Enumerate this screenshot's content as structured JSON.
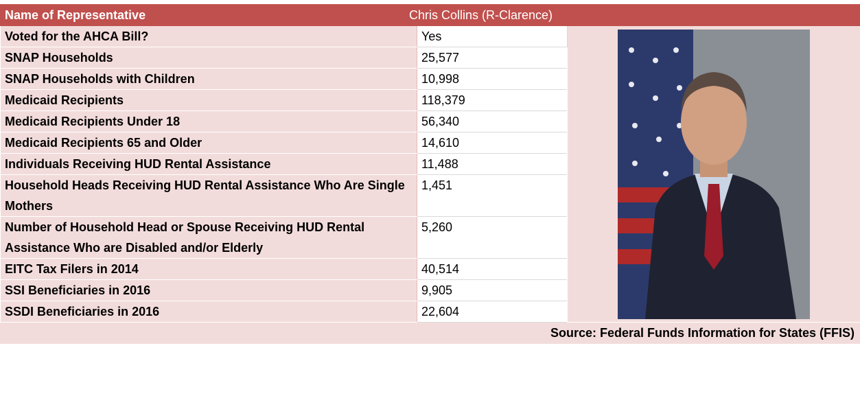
{
  "header": {
    "label": "Name of Representative",
    "name": "Chris Collins (R-Clarence)"
  },
  "rows": [
    {
      "label": "Voted for the AHCA Bill?",
      "value": "Yes"
    },
    {
      "label": "SNAP Households",
      "value": "25,577"
    },
    {
      "label": "SNAP Households with Children",
      "value": "10,998"
    },
    {
      "label": "Medicaid Recipients",
      "value": "118,379"
    },
    {
      "label": "Medicaid Recipients Under 18",
      "value": "56,340"
    },
    {
      "label": "Medicaid Recipients 65 and Older",
      "value": "14,610"
    },
    {
      "label": "Individuals Receiving HUD Rental Assistance",
      "value": "11,488"
    },
    {
      "label": "Household Heads Receiving HUD Rental Assistance Who Are Single Mothers",
      "value": "1,451"
    },
    {
      "label": "Number of Household Head or Spouse Receiving HUD Rental Assistance Who are Disabled and/or Elderly",
      "value": "5,260"
    },
    {
      "label": "EITC Tax Filers in 2014",
      "value": "40,514"
    },
    {
      "label": "SSI Beneficiaries in 2016",
      "value": "9,905"
    },
    {
      "label": "SSDI Beneficiaries in 2016",
      "value": "22,604"
    }
  ],
  "source": "Source: Federal Funds Information for States (FFIS)"
}
